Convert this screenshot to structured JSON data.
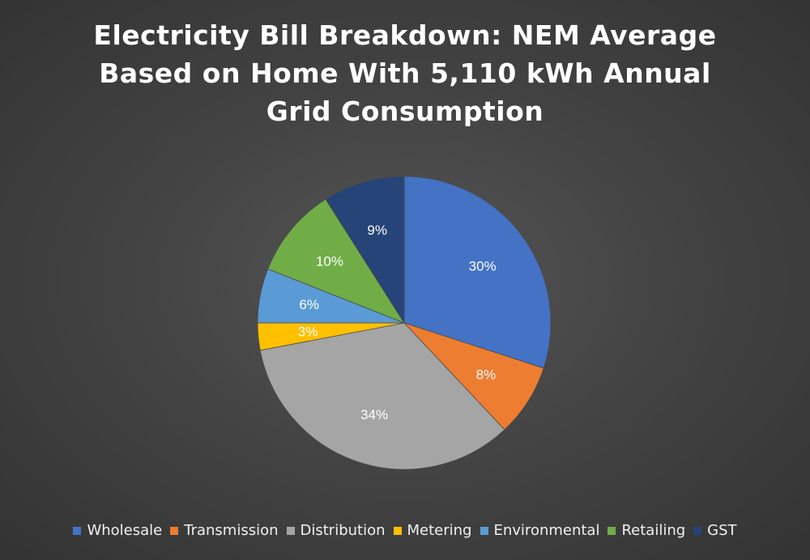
{
  "chart_data": {
    "type": "pie",
    "title_lines": [
      "Electricity Bill Breakdown: NEM Average",
      "Based on Home With 5,110 kWh Annual",
      "Grid Consumption"
    ],
    "categories": [
      "Wholesale",
      "Transmission",
      "Distribution",
      "Metering",
      "Environmental",
      "Retailing",
      "GST"
    ],
    "values": [
      30,
      8,
      34,
      3,
      6,
      10,
      9
    ],
    "value_labels": [
      "30%",
      "8%",
      "34%",
      "3%",
      "6%",
      "10%",
      "9%"
    ],
    "colors": [
      "#4472C4",
      "#ED7D31",
      "#A5A5A5",
      "#FFC000",
      "#5B9BD5",
      "#70AD47",
      "#264478"
    ],
    "legend_position": "bottom"
  }
}
